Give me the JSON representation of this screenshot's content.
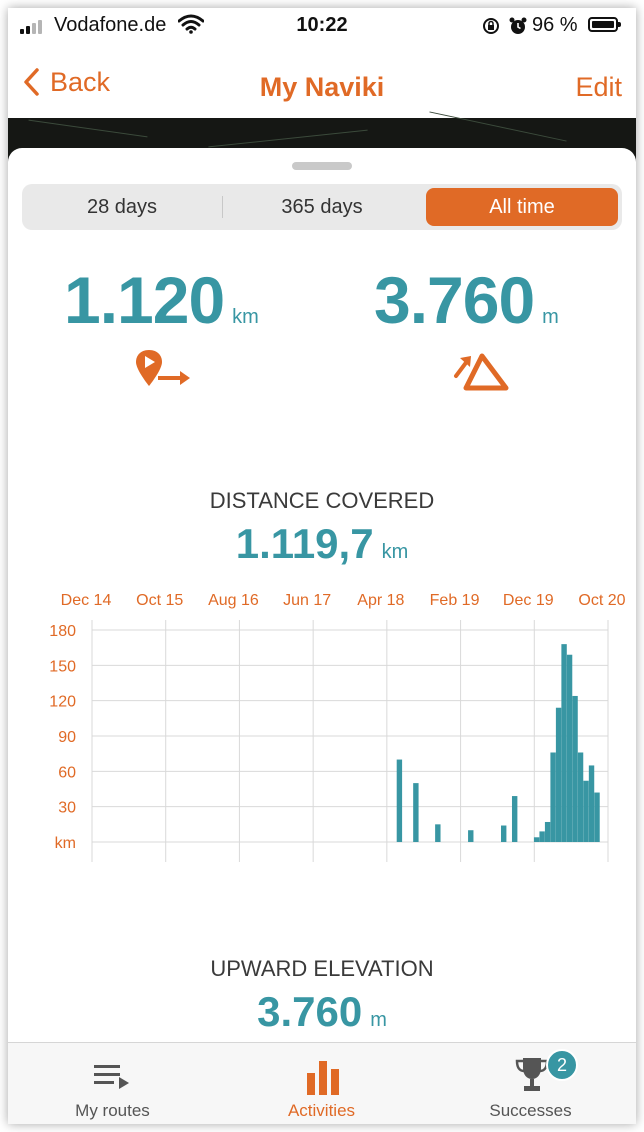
{
  "status_bar": {
    "carrier": "Vodafone.de",
    "time": "10:22",
    "battery": "96 %"
  },
  "nav": {
    "back_label": "Back",
    "title": "My Naviki",
    "edit_label": "Edit"
  },
  "period_tabs": [
    {
      "label": "28 days",
      "active": false
    },
    {
      "label": "365 days",
      "active": false
    },
    {
      "label": "All time",
      "active": true
    }
  ],
  "summary": {
    "distance": {
      "value": "1.120",
      "unit": "km",
      "icon": "route-distance-icon"
    },
    "elevation": {
      "value": "3.760",
      "unit": "m",
      "icon": "elevation-gain-icon"
    }
  },
  "distance_section": {
    "title": "DISTANCE COVERED",
    "value": "1.119,7",
    "unit": "km"
  },
  "elevation_section": {
    "title": "UPWARD ELEVATION",
    "value": "3.760",
    "unit": "m"
  },
  "chart_data": {
    "type": "bar",
    "x_ticks": [
      "Dec 14",
      "Oct 15",
      "Aug 16",
      "Jun 17",
      "Apr 18",
      "Feb 19",
      "Dec 19",
      "Oct 20"
    ],
    "y_ticks": [
      "180",
      "150",
      "120",
      "90",
      "60",
      "30"
    ],
    "y_unit_label": "km",
    "ylim": [
      0,
      180
    ],
    "grid": true,
    "series": [
      {
        "months_from_start": [
          56,
          59,
          63,
          69,
          75,
          77,
          81,
          82,
          83,
          84,
          85,
          86,
          87,
          88,
          89,
          90,
          91,
          92
        ],
        "values": [
          70,
          50,
          15,
          10,
          14,
          39,
          4,
          9,
          17,
          76,
          114,
          168,
          159,
          124,
          76,
          52,
          65,
          42
        ]
      }
    ],
    "bar_color": "#3896a3",
    "axis_label_color": "#e06a26"
  },
  "tab_bar": [
    {
      "label": "My routes",
      "icon": "list-icon",
      "active": false
    },
    {
      "label": "Activities",
      "icon": "bar-chart-icon",
      "active": true
    },
    {
      "label": "Successes",
      "icon": "trophy-icon",
      "active": false,
      "badge": "2"
    }
  ],
  "colors": {
    "accent": "#e06a26",
    "teal": "#3896a3"
  }
}
